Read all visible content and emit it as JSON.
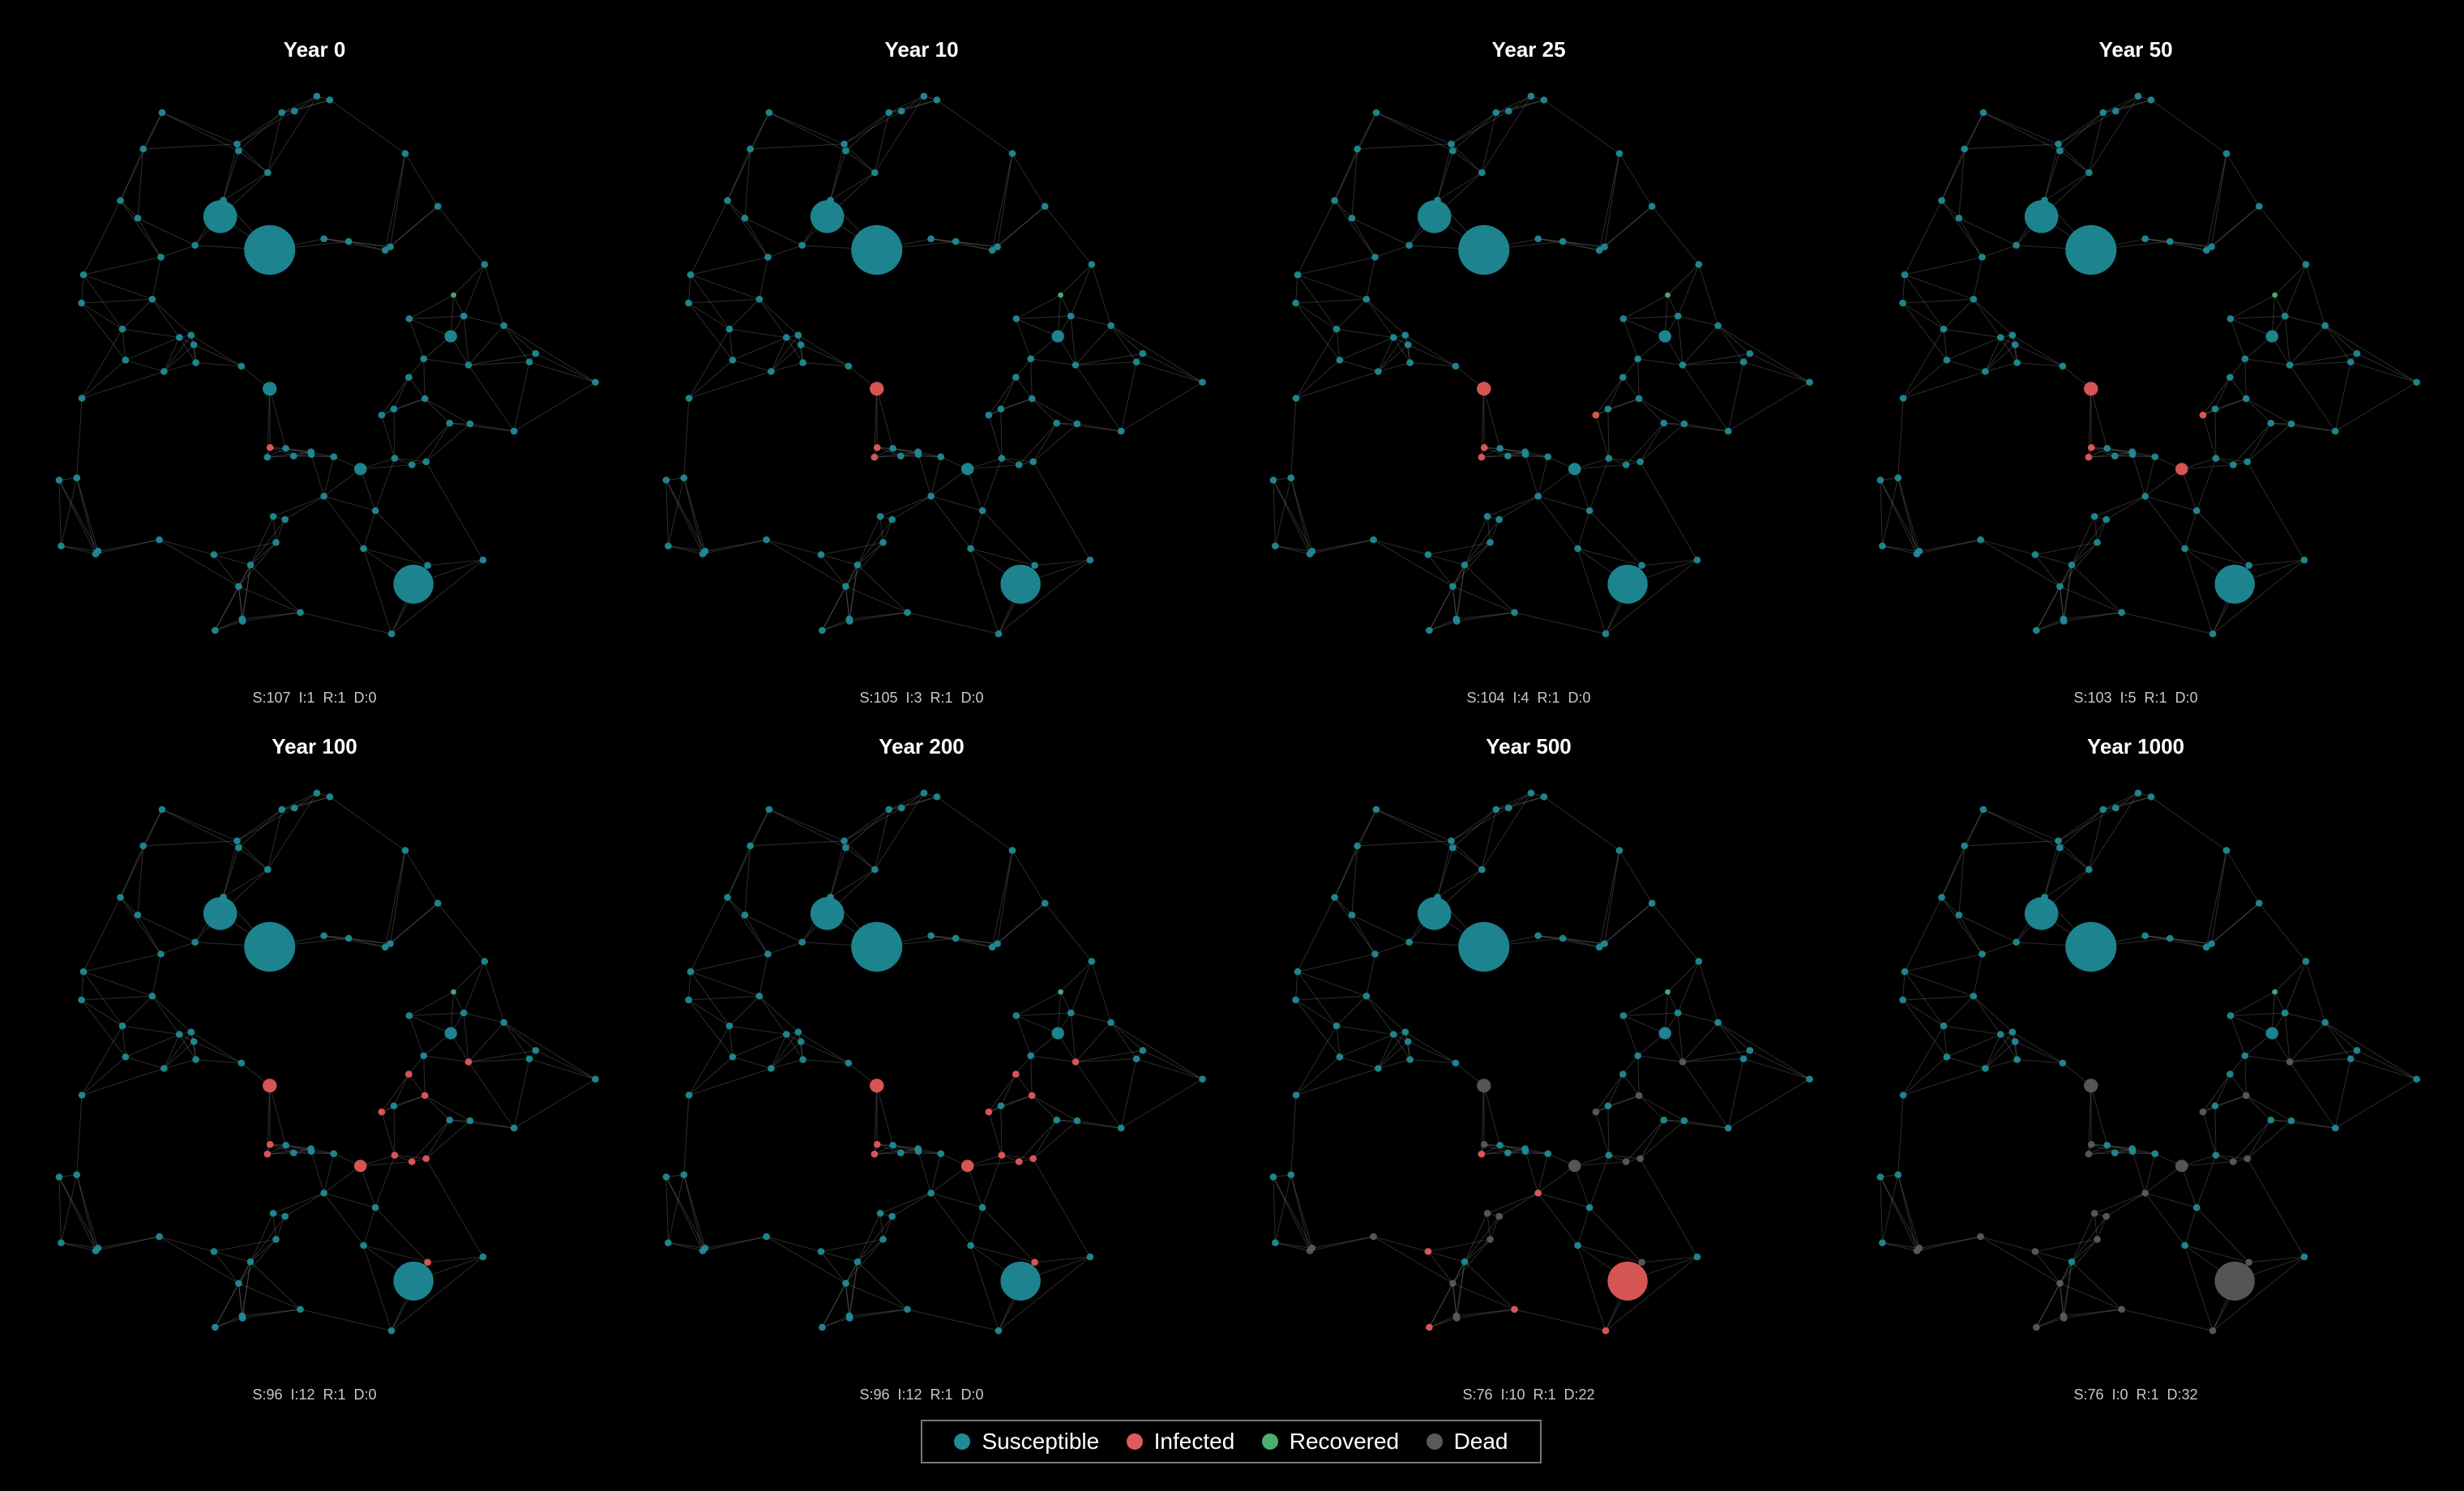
{
  "colors": {
    "susceptible": "#1f8a96",
    "infected": "#e05a5a",
    "recovered": "#4caf6e",
    "dead": "#5a5a5a",
    "edge": "#9a9a9a"
  },
  "panels": [
    {
      "title": "Year 0",
      "stats_text": "S:107  I:1  R:1  D:0",
      "stats": {
        "S": 107,
        "I": 1,
        "R": 1,
        "D": 0
      }
    },
    {
      "title": "Year 10",
      "stats_text": "S:105  I:3  R:1  D:0",
      "stats": {
        "S": 105,
        "I": 3,
        "R": 1,
        "D": 0
      }
    },
    {
      "title": "Year 25",
      "stats_text": "S:104  I:4  R:1  D:0",
      "stats": {
        "S": 104,
        "I": 4,
        "R": 1,
        "D": 0
      }
    },
    {
      "title": "Year 50",
      "stats_text": "S:103  I:5  R:1  D:0",
      "stats": {
        "S": 103,
        "I": 5,
        "R": 1,
        "D": 0
      }
    },
    {
      "title": "Year 100",
      "stats_text": "S:96  I:12  R:1  D:0",
      "stats": {
        "S": 96,
        "I": 12,
        "R": 1,
        "D": 0
      }
    },
    {
      "title": "Year 200",
      "stats_text": "S:96  I:12  R:1  D:0",
      "stats": {
        "S": 96,
        "I": 12,
        "R": 1,
        "D": 0
      }
    },
    {
      "title": "Year 500",
      "stats_text": "S:76  I:10  R:1  D:22",
      "stats": {
        "S": 76,
        "I": 10,
        "R": 1,
        "D": 22
      }
    },
    {
      "title": "Year 1000",
      "stats_text": "S:76  I:0  R:1  D:32",
      "stats": {
        "S": 76,
        "I": 0,
        "R": 1,
        "D": 32
      }
    }
  ],
  "legend": [
    {
      "label": "Susceptible",
      "color": "#1f8a96"
    },
    {
      "label": "Infected",
      "color": "#e05a5a"
    },
    {
      "label": "Recovered",
      "color": "#4caf6e"
    },
    {
      "label": "Dead",
      "color": "#5a5a5a"
    }
  ]
}
